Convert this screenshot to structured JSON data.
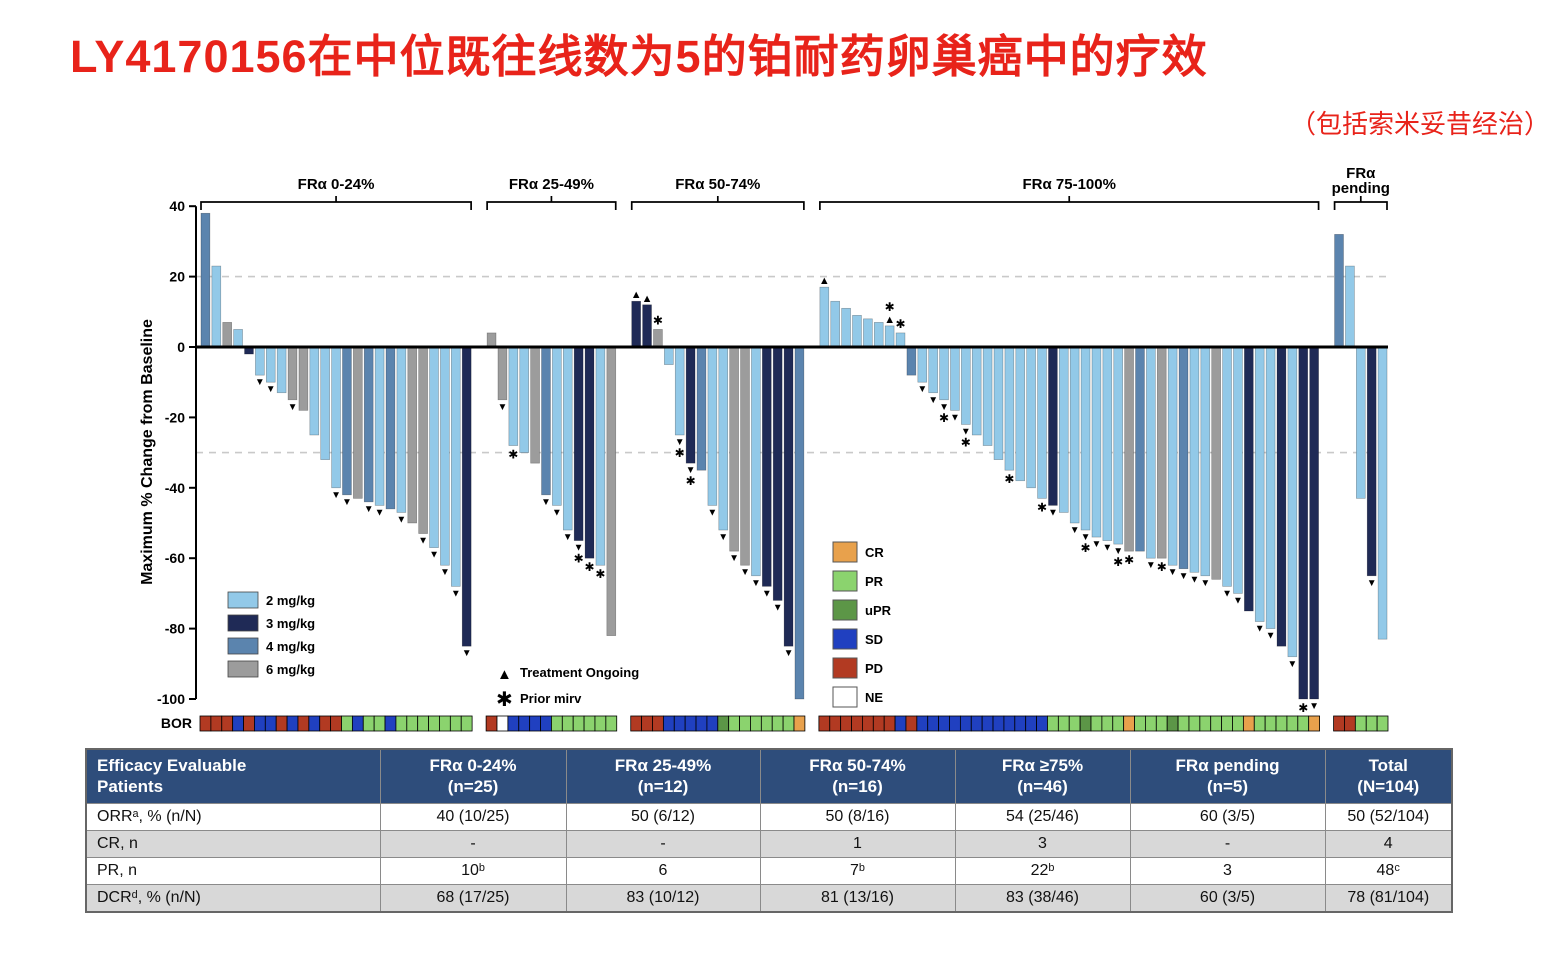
{
  "title": "LY4170156在中位既往线数为5的铂耐药卵巢癌中的疗效",
  "subtitle": "（包括索米妥昔经治）",
  "accent_color": "#E8231A",
  "chart_data": {
    "type": "bar",
    "subtype": "waterfall",
    "ylabel": "Maximum % Change from Baseline",
    "ylim": [
      -100,
      40
    ],
    "yticks": [
      40,
      20,
      0,
      -20,
      -40,
      -60,
      -80,
      -100
    ],
    "reference_lines": [
      20,
      -30
    ],
    "bor_label": "BOR",
    "dose_legend": [
      {
        "label": "2 mg/kg",
        "color": "#92C9E8"
      },
      {
        "label": "3 mg/kg",
        "color": "#1F2A56"
      },
      {
        "label": "4 mg/kg",
        "color": "#5B84AE"
      },
      {
        "label": "6 mg/kg",
        "color": "#9C9C9C"
      }
    ],
    "marker_legend": [
      {
        "symbol": "▲",
        "label": "Treatment Ongoing"
      },
      {
        "symbol": "✱",
        "label": "Prior mirv"
      }
    ],
    "bor_legend": [
      {
        "label": "CR",
        "color": "#E8A14C"
      },
      {
        "label": "PR",
        "color": "#8BD36E"
      },
      {
        "label": "uPR",
        "color": "#5C9647"
      },
      {
        "label": "SD",
        "color": "#2040C0"
      },
      {
        "label": "PD",
        "color": "#B23A22"
      },
      {
        "label": "NE",
        "color": "#FFFFFF"
      }
    ],
    "groups": [
      {
        "label": "FRα 0-24%",
        "bars": [
          [
            38,
            2,
            ""
          ],
          [
            23,
            0,
            ""
          ],
          [
            7,
            3,
            ""
          ],
          [
            5,
            0,
            ""
          ],
          [
            -2,
            1,
            ""
          ],
          [
            -8,
            0,
            "t"
          ],
          [
            -10,
            0,
            "t"
          ],
          [
            -13,
            0,
            ""
          ],
          [
            -15,
            3,
            "t"
          ],
          [
            -18,
            3,
            ""
          ],
          [
            -25,
            0,
            ""
          ],
          [
            -32,
            0,
            ""
          ],
          [
            -40,
            0,
            "t"
          ],
          [
            -42,
            2,
            "t"
          ],
          [
            -43,
            3,
            ""
          ],
          [
            -44,
            2,
            "t"
          ],
          [
            -45,
            0,
            "t"
          ],
          [
            -46,
            2,
            ""
          ],
          [
            -47,
            0,
            "t"
          ],
          [
            -50,
            3,
            ""
          ],
          [
            -53,
            3,
            "t"
          ],
          [
            -57,
            0,
            "t"
          ],
          [
            -62,
            0,
            "t"
          ],
          [
            -68,
            0,
            "t"
          ],
          [
            -85,
            1,
            "t"
          ]
        ],
        "bor": [
          "PD",
          "PD",
          "PD",
          "SD",
          "PD",
          "SD",
          "SD",
          "PD",
          "SD",
          "PD",
          "SD",
          "PD",
          "PD",
          "PR",
          "SD",
          "PR",
          "PR",
          "SD",
          "PR",
          "PR",
          "PR",
          "PR",
          "PR",
          "PR",
          "PR"
        ]
      },
      {
        "label": "FRα 25-49%",
        "bars": [
          [
            4,
            3,
            ""
          ],
          [
            -15,
            3,
            "t"
          ],
          [
            -28,
            0,
            "s"
          ],
          [
            -30,
            0,
            ""
          ],
          [
            -33,
            3,
            ""
          ],
          [
            -42,
            2,
            "t"
          ],
          [
            -45,
            0,
            "t"
          ],
          [
            -52,
            0,
            "t"
          ],
          [
            -55,
            1,
            "ts"
          ],
          [
            -60,
            1,
            "s"
          ],
          [
            -62,
            0,
            "s"
          ],
          [
            -82,
            3,
            ""
          ]
        ],
        "bor": [
          "PD",
          "NE",
          "SD",
          "SD",
          "SD",
          "SD",
          "PR",
          "PR",
          "PR",
          "PR",
          "PR",
          "PR"
        ]
      },
      {
        "label": "FRα 50-74%",
        "bars": [
          [
            13,
            1,
            "t"
          ],
          [
            12,
            1,
            "t"
          ],
          [
            5,
            3,
            "s"
          ],
          [
            -5,
            0,
            ""
          ],
          [
            -25,
            0,
            "ts"
          ],
          [
            -33,
            1,
            "ts"
          ],
          [
            -35,
            2,
            ""
          ],
          [
            -45,
            0,
            "t"
          ],
          [
            -52,
            0,
            "t"
          ],
          [
            -58,
            3,
            "t"
          ],
          [
            -62,
            3,
            "t"
          ],
          [
            -65,
            0,
            "t"
          ],
          [
            -68,
            1,
            "t"
          ],
          [
            -72,
            1,
            "t"
          ],
          [
            -85,
            1,
            "t"
          ],
          [
            -100,
            2,
            ""
          ]
        ],
        "bor": [
          "PD",
          "PD",
          "PD",
          "SD",
          "SD",
          "SD",
          "SD",
          "SD",
          "uPR",
          "PR",
          "PR",
          "PR",
          "PR",
          "PR",
          "PR",
          "CR"
        ]
      },
      {
        "label": "FRα 75-100%",
        "bars": [
          [
            17,
            0,
            "t"
          ],
          [
            13,
            0,
            ""
          ],
          [
            11,
            0,
            ""
          ],
          [
            9,
            0,
            ""
          ],
          [
            8,
            0,
            ""
          ],
          [
            7,
            0,
            ""
          ],
          [
            6,
            0,
            "ts"
          ],
          [
            4,
            0,
            "s"
          ],
          [
            -8,
            2,
            ""
          ],
          [
            -10,
            0,
            "t"
          ],
          [
            -13,
            0,
            "t"
          ],
          [
            -15,
            0,
            "ts"
          ],
          [
            -18,
            0,
            "t"
          ],
          [
            -22,
            0,
            "ts"
          ],
          [
            -25,
            0,
            ""
          ],
          [
            -28,
            0,
            ""
          ],
          [
            -32,
            0,
            ""
          ],
          [
            -35,
            0,
            "s"
          ],
          [
            -38,
            0,
            ""
          ],
          [
            -40,
            0,
            ""
          ],
          [
            -43,
            0,
            "s"
          ],
          [
            -45,
            1,
            "t"
          ],
          [
            -47,
            0,
            ""
          ],
          [
            -50,
            0,
            "t"
          ],
          [
            -52,
            0,
            "ts"
          ],
          [
            -54,
            0,
            "t"
          ],
          [
            -55,
            0,
            "t"
          ],
          [
            -56,
            0,
            "ts"
          ],
          [
            -58,
            3,
            "s"
          ],
          [
            -58,
            2,
            ""
          ],
          [
            -60,
            0,
            "t"
          ],
          [
            -60,
            3,
            "s"
          ],
          [
            -62,
            0,
            "t"
          ],
          [
            -63,
            2,
            "t"
          ],
          [
            -64,
            0,
            "t"
          ],
          [
            -65,
            0,
            "t"
          ],
          [
            -66,
            3,
            ""
          ],
          [
            -68,
            0,
            "t"
          ],
          [
            -70,
            0,
            "t"
          ],
          [
            -75,
            1,
            ""
          ],
          [
            -78,
            0,
            "t"
          ],
          [
            -80,
            0,
            "t"
          ],
          [
            -85,
            1,
            ""
          ],
          [
            -88,
            0,
            "t"
          ],
          [
            -100,
            1,
            "s"
          ],
          [
            -100,
            1,
            "t"
          ]
        ],
        "bor": [
          "PD",
          "PD",
          "PD",
          "PD",
          "PD",
          "PD",
          "PD",
          "SD",
          "PD",
          "SD",
          "SD",
          "SD",
          "SD",
          "SD",
          "SD",
          "SD",
          "SD",
          "SD",
          "SD",
          "SD",
          "SD",
          "PR",
          "PR",
          "PR",
          "uPR",
          "PR",
          "PR",
          "PR",
          "CR",
          "PR",
          "PR",
          "PR",
          "uPR",
          "PR",
          "PR",
          "PR",
          "PR",
          "PR",
          "PR",
          "CR",
          "PR",
          "PR",
          "PR",
          "PR",
          "PR",
          "CR"
        ]
      },
      {
        "label": "FRα",
        "label2": "pending",
        "bars": [
          [
            32,
            2,
            ""
          ],
          [
            23,
            0,
            ""
          ],
          [
            -43,
            0,
            ""
          ],
          [
            -65,
            1,
            "t"
          ],
          [
            -83,
            0,
            ""
          ]
        ],
        "bor": [
          "PD",
          "PD",
          "PR",
          "PR",
          "PR"
        ]
      }
    ]
  },
  "table": {
    "headers": [
      "Efficacy Evaluable\nPatients",
      "FRα 0-24%\n(n=25)",
      "FRα 25-49%\n(n=12)",
      "FRα 50-74%\n(n=16)",
      "FRα ≥75%\n(n=46)",
      "FRα pending\n(n=5)",
      "Total\n(N=104)"
    ],
    "rows": [
      [
        "ORRᵃ, % (n/N)",
        "40 (10/25)",
        "50 (6/12)",
        "50 (8/16)",
        "54 (25/46)",
        "60 (3/5)",
        "50 (52/104)"
      ],
      [
        "CR, n",
        "-",
        "-",
        "1",
        "3",
        "-",
        "4"
      ],
      [
        "PR, n",
        "10ᵇ",
        "6",
        "7ᵇ",
        "22ᵇ",
        "3",
        "48ᶜ"
      ],
      [
        "DCRᵈ, % (n/N)",
        "68 (17/25)",
        "83 (10/12)",
        "81 (13/16)",
        "83 (38/46)",
        "60 (3/5)",
        "78 (81/104)"
      ]
    ]
  }
}
